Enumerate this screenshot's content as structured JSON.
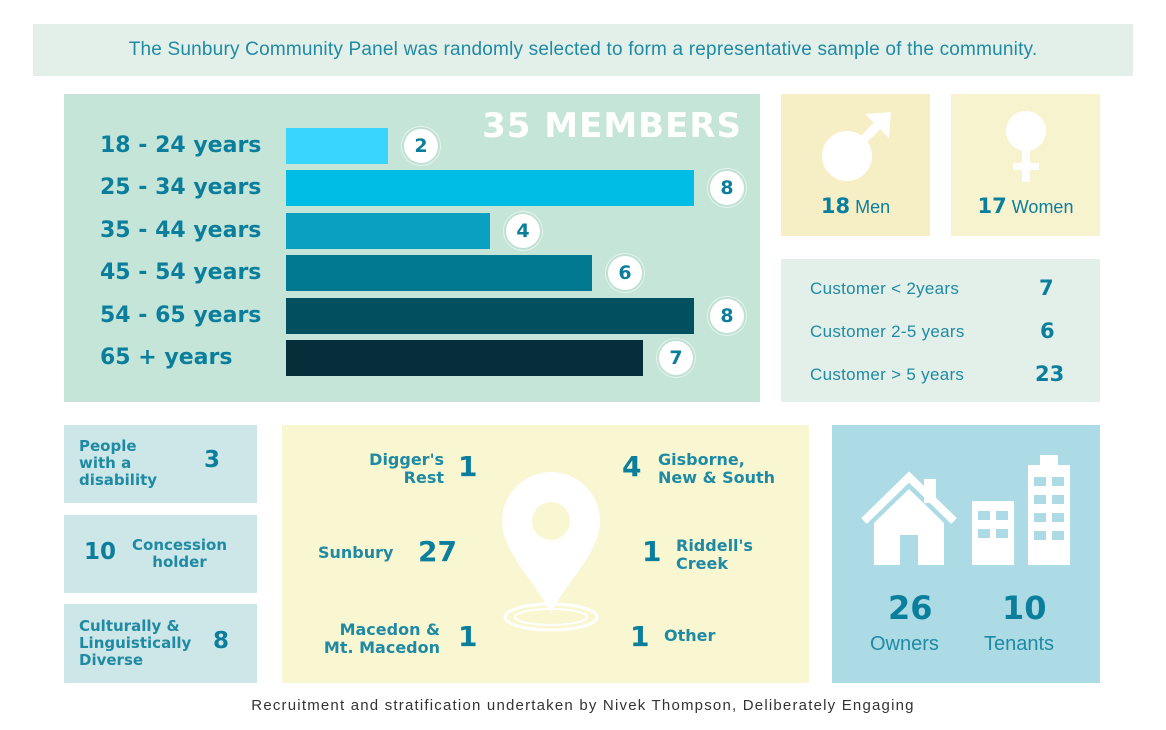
{
  "banner": {
    "text": "The Sunbury Community Panel was randomly selected to form a representative sample of the community."
  },
  "chart_data": {
    "type": "bar",
    "title": "35 MEMBERS",
    "orientation": "horizontal",
    "categories": [
      "18 - 24 years",
      "25 - 34 years",
      "35 - 44 years",
      "45 - 54 years",
      "54 - 65 years",
      "65 + years"
    ],
    "values": [
      2,
      8,
      4,
      6,
      8,
      7
    ],
    "colors": [
      "#39d5ff",
      "#00bde6",
      "#0aa0c2",
      "#00788f",
      "#01505f",
      "#062e3a"
    ],
    "xlim": [
      0,
      8
    ],
    "grid": false
  },
  "gender": {
    "men": {
      "count": "18",
      "label": "Men",
      "icon": "male-symbol-icon"
    },
    "women": {
      "count": "17",
      "label": "Women",
      "icon": "female-symbol-icon"
    }
  },
  "tenure": [
    {
      "label": "Customer < 2years",
      "value": "7"
    },
    {
      "label": "Customer 2-5 years",
      "value": "6"
    },
    {
      "label": "Customer > 5 years",
      "value": "23"
    }
  ],
  "demographics": {
    "disability": {
      "label_lines": [
        "People",
        "with a",
        "disability"
      ],
      "value": "3"
    },
    "concession": {
      "label_lines": [
        "Concession",
        "holder"
      ],
      "value": "10"
    },
    "cald": {
      "label_lines": [
        "Culturally &",
        "Linguistically",
        "Diverse"
      ],
      "value": "8"
    }
  },
  "locations": {
    "icon": "map-pin-icon",
    "diggers_rest": {
      "label_lines": [
        "Digger's",
        "Rest"
      ],
      "value": "1"
    },
    "sunbury": {
      "label": "Sunbury",
      "value": "27"
    },
    "macedon": {
      "label_lines": [
        "Macedon &",
        "Mt. Macedon"
      ],
      "value": "1"
    },
    "gisborne": {
      "label_lines": [
        "Gisborne,",
        "New & South"
      ],
      "value": "4"
    },
    "riddells": {
      "label_lines": [
        "Riddell's",
        "Creek"
      ],
      "value": "1"
    },
    "other": {
      "label": "Other",
      "value": "1"
    }
  },
  "housing": {
    "owners": {
      "value": "26",
      "label": "Owners",
      "icon": "house-icon"
    },
    "tenants": {
      "value": "10",
      "label": "Tenants",
      "icon": "apartment-buildings-icon"
    }
  },
  "footer": {
    "text": "Recruitment and stratification undertaken by Nivek Thompson, Deliberately Engaging"
  }
}
